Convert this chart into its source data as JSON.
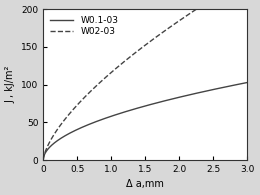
{
  "title": "",
  "xlabel": "Δ a,mm",
  "ylabel": "J , kJ/m²",
  "xlim": [
    0,
    3.0
  ],
  "ylim": [
    0,
    200
  ],
  "xticks": [
    0,
    0.5,
    1.0,
    1.5,
    2.0,
    2.5,
    3.0
  ],
  "xtick_labels": [
    "0",
    "0.5",
    "1.0",
    "1.5",
    "2.0",
    "2.5",
    "3.0"
  ],
  "yticks": [
    0,
    50,
    100,
    150,
    200
  ],
  "ytick_labels": [
    "0",
    "50",
    "100",
    "150",
    "200"
  ],
  "series": [
    {
      "label": "W0.1-03",
      "linestyle": "solid",
      "color": "#444444",
      "C": 58.0,
      "n": 0.52
    },
    {
      "label": "W02-03",
      "linestyle": "dashed",
      "color": "#444444",
      "C": 116.0,
      "n": 0.67
    }
  ],
  "legend_loc": "upper left",
  "background_color": "#d8d8d8",
  "plot_bg_color": "#ffffff",
  "fontsize": 7,
  "tick_fontsize": 6.5,
  "linewidth": 1.0
}
